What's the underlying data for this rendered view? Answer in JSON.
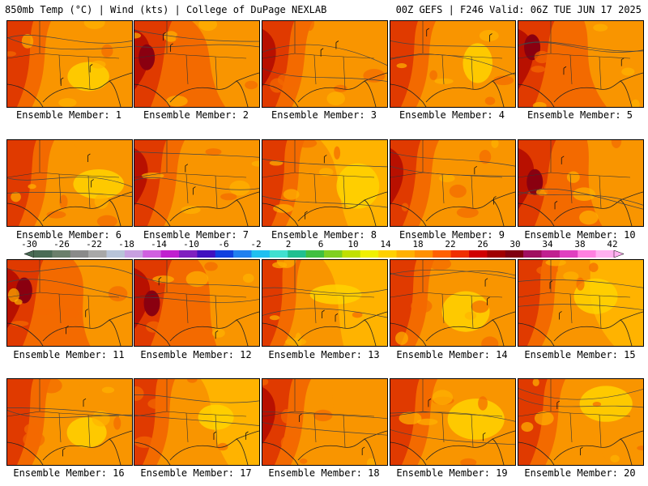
{
  "header": {
    "left_title": "850mb Temp (°C) | Wind (kts) | College of DuPage NEXLAB",
    "right_title": "00Z GEFS | F246 Valid: 06Z TUE JUN 17 2025"
  },
  "panels": [
    {
      "label": "Ensemble Member: 1",
      "heat": 0.35
    },
    {
      "label": "Ensemble Member: 2",
      "heat": 0.75
    },
    {
      "label": "Ensemble Member: 3",
      "heat": 0.55
    },
    {
      "label": "Ensemble Member: 4",
      "heat": 0.4
    },
    {
      "label": "Ensemble Member: 5",
      "heat": 0.7
    },
    {
      "label": "Ensemble Member: 6",
      "heat": 0.45
    },
    {
      "label": "Ensemble Member: 7",
      "heat": 0.55
    },
    {
      "label": "Ensemble Member: 8",
      "heat": 0.3
    },
    {
      "label": "Ensemble Member: 9",
      "heat": 0.5
    },
    {
      "label": "Ensemble Member: 10",
      "heat": 0.75
    },
    {
      "label": "Ensemble Member: 11",
      "heat": 0.7
    },
    {
      "label": "Ensemble Member: 12",
      "heat": 0.75
    },
    {
      "label": "Ensemble Member: 13",
      "heat": 0.2
    },
    {
      "label": "Ensemble Member: 14",
      "heat": 0.35
    },
    {
      "label": "Ensemble Member: 15",
      "heat": 0.3
    },
    {
      "label": "Ensemble Member: 16",
      "heat": 0.35
    },
    {
      "label": "Ensemble Member: 17",
      "heat": 0.25
    },
    {
      "label": "Ensemble Member: 18",
      "heat": 0.5
    },
    {
      "label": "Ensemble Member: 19",
      "heat": 0.45
    },
    {
      "label": "Ensemble Member: 20",
      "heat": 0.45
    }
  ],
  "colorbar": {
    "tick_labels": [
      "-30",
      "-26",
      "-22",
      "-18",
      "-14",
      "-10",
      "-6",
      "-2",
      "2",
      "6",
      "10",
      "14",
      "18",
      "22",
      "26",
      "30",
      "34",
      "38",
      "42"
    ],
    "colors": [
      "#4a6b55",
      "#6b7f6b",
      "#8a8a8a",
      "#a8a8a8",
      "#b8c4d8",
      "#c7a0e0",
      "#d060e0",
      "#c020d0",
      "#8020c0",
      "#4010c0",
      "#1040e0",
      "#2080f0",
      "#20c0f0",
      "#40e0d0",
      "#20c090",
      "#40c040",
      "#80d020",
      "#c0e000",
      "#f0f000",
      "#ffd000",
      "#ffb000",
      "#ff9000",
      "#ff6000",
      "#f03000",
      "#d00000",
      "#a00000",
      "#800010",
      "#a01060",
      "#c02090",
      "#e040c0",
      "#ff80e0",
      "#ffb0f0"
    ]
  },
  "palette": {
    "yellow": "#ffd200",
    "light_orange": "#ffb300",
    "orange": "#f99500",
    "dark_orange": "#f36a00",
    "red": "#e03a00",
    "dark_red": "#b81000",
    "maroon": "#8a0010",
    "purple": "#7a2060"
  }
}
